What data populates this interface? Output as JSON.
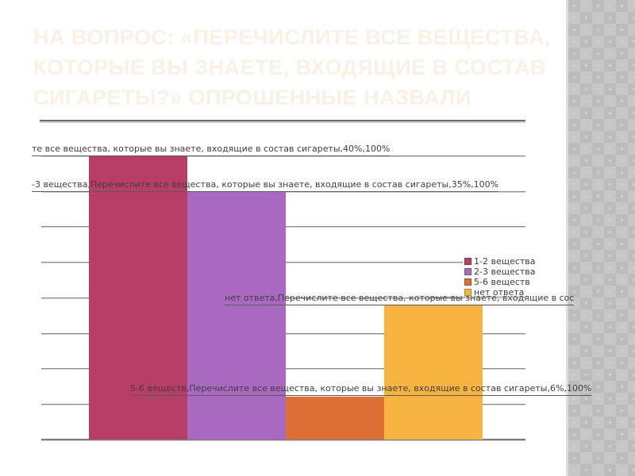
{
  "slide": {
    "title_lines": [
      "НА ВОПРОС: «ПЕРЕЧИСЛИТЕ ВСЕ ВЕЩЕСТВА,",
      "КОТОРЫЕ ВЫ ЗНАЕТЕ, ВХОДЯЩИЕ В СОСТАВ",
      "СИГАРЕТЫ?» ОПРОШЕННЫЕ НАЗВАЛИ"
    ],
    "title_color": "#faf1e4"
  },
  "chart_data": {
    "type": "bar",
    "title": "",
    "categories": [
      "1-2 вещества",
      "2-3 вещества",
      "5-6 веществ",
      "нет ответа"
    ],
    "values": [
      40,
      35,
      6,
      19
    ],
    "unit": "%",
    "colors": [
      "#b83e68",
      "#aa69c1",
      "#dd6e35",
      "#f6b340"
    ],
    "ylim": [
      0,
      40
    ],
    "gridline_step": 5,
    "grid": "on",
    "legend_position": "right-middle",
    "legend_entries": [
      "1-2 вещества",
      "2-3 вещества",
      "5-6 веществ",
      "нет ответа"
    ],
    "data_labels": [
      "те все вещества, которые вы знаете, входящие в состав сигареты,40%,100%",
      "-3 вещества,Перечислите все вещества, которые вы знаете, входящие в состав сигареты,35%,100%",
      "нет ответа,Перечислите все вещества, которые вы знаете, входящие в сос",
      "5-6 веществ,Перечислите все вещества, которые вы знаете, входящие в состав сигареты,6%,100%"
    ]
  }
}
